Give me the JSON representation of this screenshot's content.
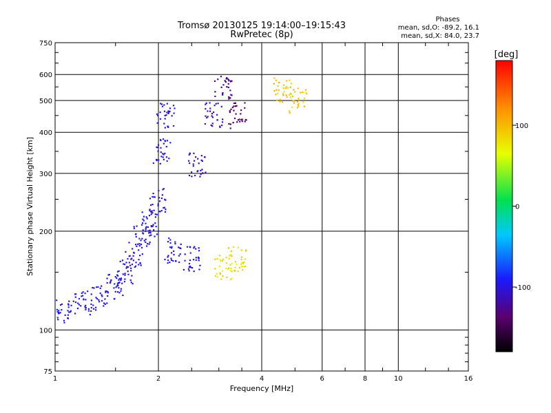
{
  "chart_data": {
    "type": "scatter",
    "title": "Tromsø 20130125  19:14:00–19:15:43",
    "subtitle": "RwPretec (8p)",
    "xlabel": "Frequency [MHz]",
    "ylabel": "Stationary phase Virtual Height [km]",
    "x_scale": "log",
    "y_scale": "log",
    "xlim": [
      1,
      16
    ],
    "ylim": [
      75,
      750
    ],
    "x_ticks": [
      1,
      2,
      4,
      6,
      8,
      10,
      16
    ],
    "y_ticks": [
      75,
      100,
      200,
      300,
      400,
      500,
      600,
      750
    ],
    "grid": true,
    "stats_header": "Phases",
    "stats_lines": [
      "mean, sd,O: -89.2, 16.1",
      "mean, sd,X:  84.0, 23.7"
    ],
    "colorbar": {
      "label": "[deg]",
      "range": [
        -180,
        180
      ],
      "ticks": [
        100,
        0,
        -100
      ]
    },
    "series": [
      {
        "description_color": "blue/purple (O-mode, ~-100 deg)",
        "clusters": [
          {
            "x": 1.05,
            "y": 115,
            "phase": -95
          },
          {
            "x": 1.2,
            "y": 120,
            "phase": -95
          },
          {
            "x": 1.35,
            "y": 125,
            "phase": -100
          },
          {
            "x": 1.5,
            "y": 135,
            "phase": -100
          },
          {
            "x": 1.6,
            "y": 150,
            "phase": -100
          },
          {
            "x": 1.7,
            "y": 170,
            "phase": -100
          },
          {
            "x": 1.8,
            "y": 190,
            "phase": -100
          },
          {
            "x": 1.9,
            "y": 210,
            "phase": -100
          },
          {
            "x": 2.0,
            "y": 250,
            "phase": -100
          },
          {
            "x": 2.05,
            "y": 350,
            "phase": -100
          },
          {
            "x": 2.1,
            "y": 450,
            "phase": -100
          },
          {
            "x": 2.2,
            "y": 175,
            "phase": -100
          },
          {
            "x": 2.5,
            "y": 165,
            "phase": -100
          },
          {
            "x": 2.6,
            "y": 320,
            "phase": -110
          },
          {
            "x": 2.9,
            "y": 450,
            "phase": -110
          },
          {
            "x": 3.1,
            "y": 550,
            "phase": -130
          },
          {
            "x": 3.4,
            "y": 450,
            "phase": -140
          }
        ]
      },
      {
        "description_color": "yellow-green (X-mode, ~+90 deg)",
        "clusters": [
          {
            "x": 3.1,
            "y": 155,
            "phase": 80
          },
          {
            "x": 3.4,
            "y": 165,
            "phase": 85
          },
          {
            "x": 4.6,
            "y": 540,
            "phase": 95
          },
          {
            "x": 5.1,
            "y": 500,
            "phase": 90
          }
        ]
      }
    ]
  }
}
